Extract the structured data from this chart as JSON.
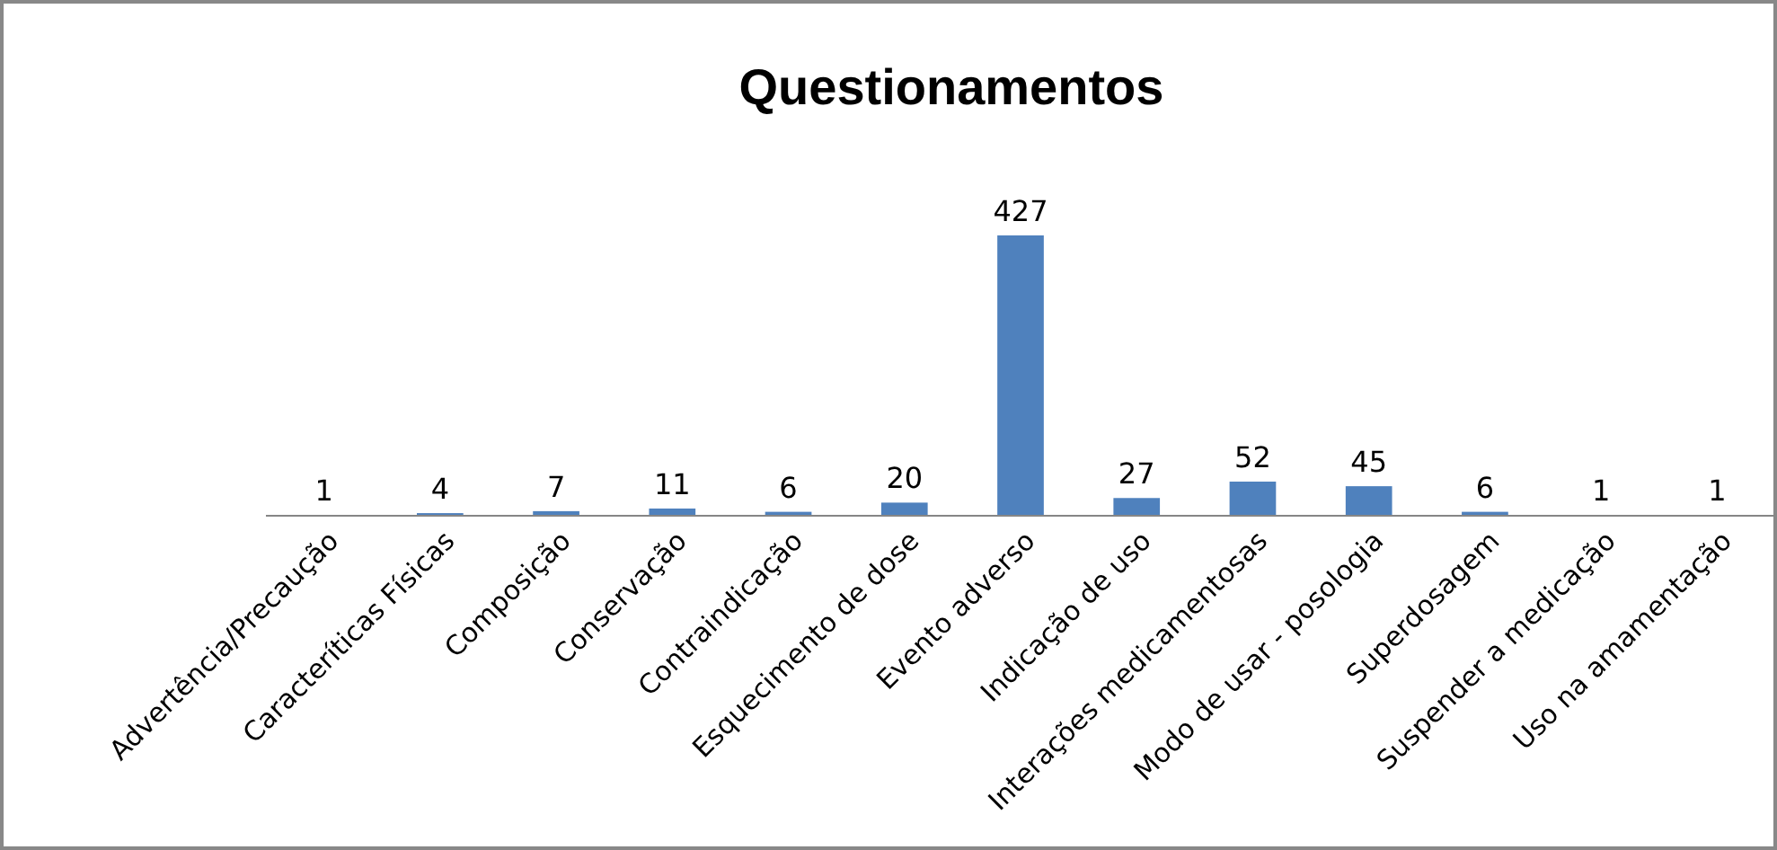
{
  "chart_data": {
    "type": "bar",
    "title": "Questionamentos",
    "categories": [
      "Advertência/Precaução",
      "Caracteríticas Físicas",
      "Composição",
      "Conservação",
      "Contraindicação",
      "Esquecimento de dose",
      "Evento adverso",
      "Indicação de uso",
      "Interações medicamentosas",
      "Modo de usar - posologia",
      "Superdosagem",
      "Suspender a medicação",
      "Uso na amamentação"
    ],
    "values": [
      1,
      4,
      7,
      11,
      6,
      20,
      427,
      27,
      52,
      45,
      6,
      1,
      1
    ],
    "color": "#4f81bd",
    "data_labels": true,
    "tick_labels": "x"
  }
}
